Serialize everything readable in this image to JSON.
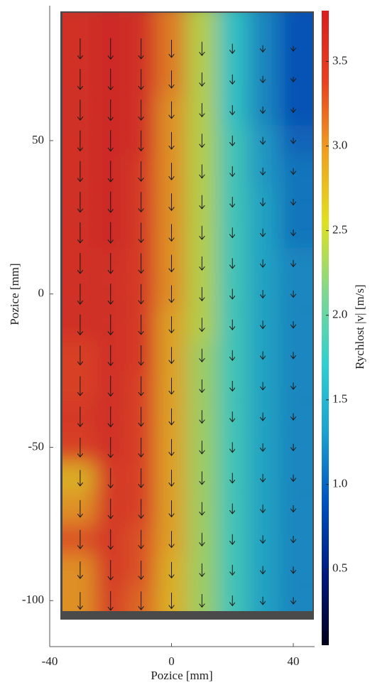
{
  "chart_data": {
    "type": "quiver",
    "x_label": "Pozice [mm]",
    "y_label": "Pozice [mm]",
    "colorbar_label": "Rychlost |v| [m/s]",
    "x": [
      -30,
      -20,
      -10,
      0,
      10,
      20,
      30,
      40
    ],
    "y": [
      80,
      70,
      60,
      50,
      40,
      30,
      20,
      10,
      0,
      -10,
      -20,
      -30,
      -40,
      -50,
      -60,
      -70,
      -80,
      -90,
      -100
    ],
    "values": [
      [
        3.6,
        3.7,
        3.6,
        3.1,
        2.4,
        1.7,
        1.2,
        0.9
      ],
      [
        3.6,
        3.7,
        3.6,
        3.1,
        2.4,
        1.7,
        1.2,
        0.9
      ],
      [
        3.6,
        3.7,
        3.6,
        3.0,
        2.4,
        1.7,
        1.2,
        0.9
      ],
      [
        3.6,
        3.7,
        3.6,
        3.0,
        2.4,
        1.8,
        1.3,
        1.0
      ],
      [
        3.6,
        3.7,
        3.5,
        3.0,
        2.4,
        1.8,
        1.3,
        1.1
      ],
      [
        3.6,
        3.7,
        3.5,
        3.0,
        2.4,
        1.8,
        1.4,
        1.1
      ],
      [
        3.6,
        3.7,
        3.5,
        3.0,
        2.4,
        1.8,
        1.4,
        1.1
      ],
      [
        3.6,
        3.6,
        3.5,
        3.0,
        2.4,
        1.8,
        1.4,
        1.2
      ],
      [
        3.6,
        3.6,
        3.5,
        3.0,
        2.4,
        1.8,
        1.4,
        1.2
      ],
      [
        3.6,
        3.6,
        3.5,
        2.9,
        2.4,
        1.8,
        1.4,
        1.2
      ],
      [
        3.4,
        3.6,
        3.5,
        2.9,
        2.3,
        1.8,
        1.4,
        1.2
      ],
      [
        3.4,
        3.6,
        3.4,
        2.9,
        2.3,
        1.8,
        1.4,
        1.2
      ],
      [
        3.5,
        3.6,
        3.4,
        2.9,
        2.3,
        1.8,
        1.4,
        1.2
      ],
      [
        3.4,
        3.6,
        3.4,
        2.9,
        2.3,
        1.8,
        1.4,
        1.2
      ],
      [
        2.8,
        3.5,
        3.4,
        2.9,
        2.3,
        1.8,
        1.4,
        1.2
      ],
      [
        3.0,
        3.5,
        3.4,
        2.9,
        2.3,
        1.8,
        1.4,
        1.2
      ],
      [
        3.3,
        3.5,
        3.3,
        2.9,
        2.3,
        1.8,
        1.4,
        1.2
      ],
      [
        3.0,
        3.5,
        3.3,
        2.8,
        2.3,
        1.8,
        1.4,
        1.2
      ],
      [
        3.0,
        3.4,
        3.2,
        2.8,
        2.3,
        1.8,
        1.4,
        1.2
      ]
    ],
    "xlim": [
      -40,
      47
    ],
    "ylim": [
      -115,
      94
    ],
    "xticks": [
      -40,
      0,
      40
    ],
    "yticks": [
      -100,
      -50,
      0,
      50
    ],
    "clim": [
      0.05,
      3.8
    ],
    "cticks": [
      0.5,
      {
        "value": 1,
        "label": "1.0"
      },
      1.5,
      {
        "value": 2,
        "label": "2.0"
      },
      2.5,
      {
        "value": 3,
        "label": "3.0"
      },
      3.5
    ],
    "colormap": [
      "#00001a",
      "#001a80",
      "#0050c0",
      "#1aa0d0",
      "#30d0d0",
      "#80d890",
      "#e0e020",
      "#f0a020",
      "#e84020",
      "#d82020"
    ],
    "arrow_color": "#1a1a1a"
  }
}
